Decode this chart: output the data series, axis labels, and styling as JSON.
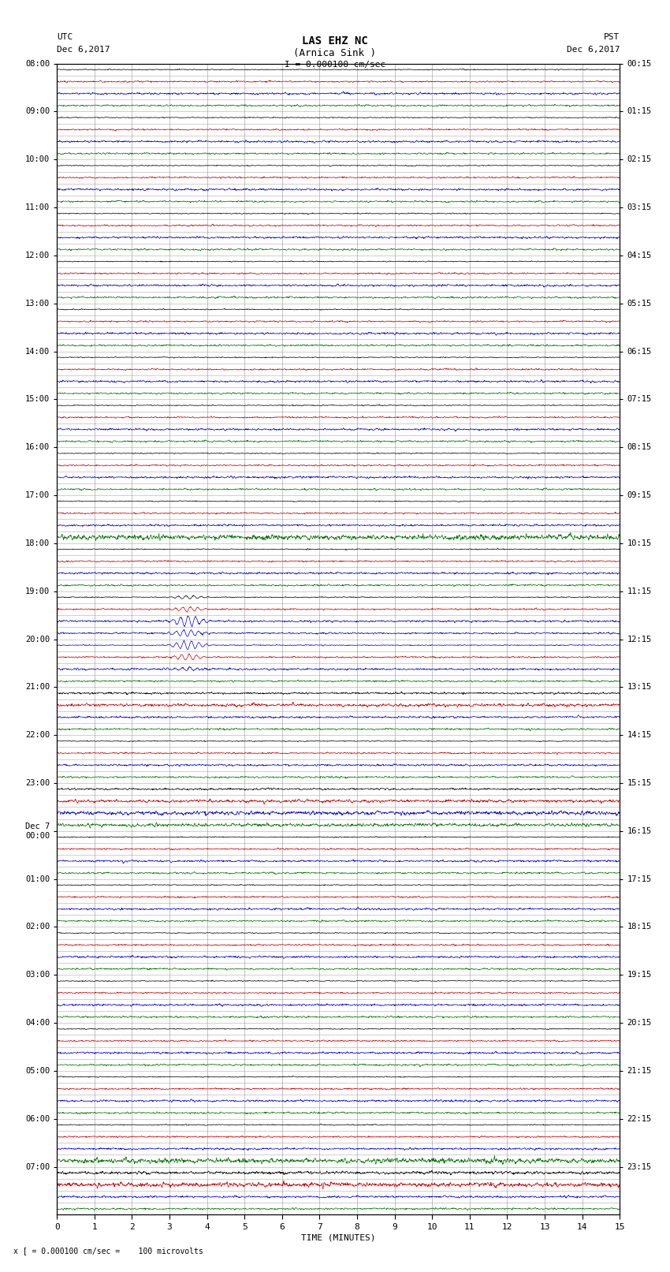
{
  "title_line1": "LAS EHZ NC",
  "title_line2": "(Arnica Sink )",
  "scale_label": "I = 0.000100 cm/sec",
  "xlabel": "TIME (MINUTES)",
  "left_label_top": "UTC",
  "left_label_date": "Dec 6,2017",
  "right_label_top": "PST",
  "right_label_date": "Dec 6,2017",
  "footer": "x [ = 0.000100 cm/sec =    100 microvolts",
  "x_min": 0,
  "x_max": 15,
  "bg_color": "#ffffff",
  "grid_color": "#888888",
  "trace_color_black": "#000000",
  "trace_color_red": "#cc0000",
  "trace_color_blue": "#0000cc",
  "trace_color_green": "#007700",
  "n_rows": 96,
  "rows_per_hour": 4,
  "noise_amp_black": 0.04,
  "noise_amp_red": 0.06,
  "noise_amp_blue": 0.08,
  "noise_amp_green": 0.07,
  "event_row": 44,
  "event_amplitude": 0.45,
  "left_times_utc": [
    "08:00",
    "",
    "",
    "",
    "09:00",
    "",
    "",
    "",
    "10:00",
    "",
    "",
    "",
    "11:00",
    "",
    "",
    "",
    "12:00",
    "",
    "",
    "",
    "13:00",
    "",
    "",
    "",
    "14:00",
    "",
    "",
    "",
    "15:00",
    "",
    "",
    "",
    "16:00",
    "",
    "",
    "",
    "17:00",
    "",
    "",
    "",
    "18:00",
    "",
    "",
    "",
    "19:00",
    "",
    "",
    "",
    "20:00",
    "",
    "",
    "",
    "21:00",
    "",
    "",
    "",
    "22:00",
    "",
    "",
    "",
    "23:00",
    "",
    "",
    "",
    "Dec 7\n00:00",
    "",
    "",
    "",
    "01:00",
    "",
    "",
    "",
    "02:00",
    "",
    "",
    "",
    "03:00",
    "",
    "",
    "",
    "04:00",
    "",
    "",
    "",
    "05:00",
    "",
    "",
    "",
    "06:00",
    "",
    "",
    "",
    "07:00",
    "",
    "",
    ""
  ],
  "right_times_pst": [
    "00:15",
    "",
    "",
    "",
    "01:15",
    "",
    "",
    "",
    "02:15",
    "",
    "",
    "",
    "03:15",
    "",
    "",
    "",
    "04:15",
    "",
    "",
    "",
    "05:15",
    "",
    "",
    "",
    "06:15",
    "",
    "",
    "",
    "07:15",
    "",
    "",
    "",
    "08:15",
    "",
    "",
    "",
    "09:15",
    "",
    "",
    "",
    "10:15",
    "",
    "",
    "",
    "11:15",
    "",
    "",
    "",
    "12:15",
    "",
    "",
    "",
    "13:15",
    "",
    "",
    "",
    "14:15",
    "",
    "",
    "",
    "15:15",
    "",
    "",
    "",
    "16:15",
    "",
    "",
    "",
    "17:15",
    "",
    "",
    "",
    "18:15",
    "",
    "",
    "",
    "19:15",
    "",
    "",
    "",
    "20:15",
    "",
    "",
    "",
    "21:15",
    "",
    "",
    "",
    "22:15",
    "",
    "",
    "",
    "23:15",
    "",
    "",
    ""
  ]
}
